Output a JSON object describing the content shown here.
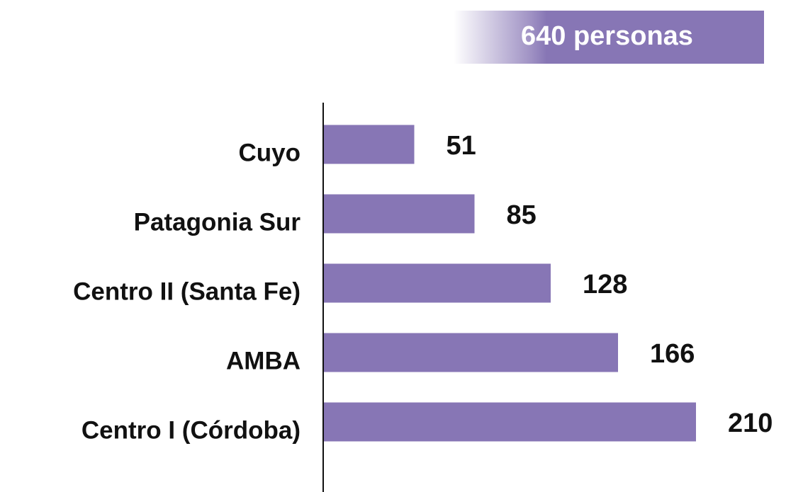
{
  "chart_data": {
    "type": "bar",
    "orientation": "horizontal",
    "annotation": "640 personas",
    "categories": [
      "Cuyo",
      "Patagonia Sur",
      "Centro II (Santa Fe)",
      "AMBA",
      "Centro I (Córdoba)"
    ],
    "values": [
      51,
      85,
      128,
      166,
      210
    ],
    "color": "#8776b5"
  }
}
